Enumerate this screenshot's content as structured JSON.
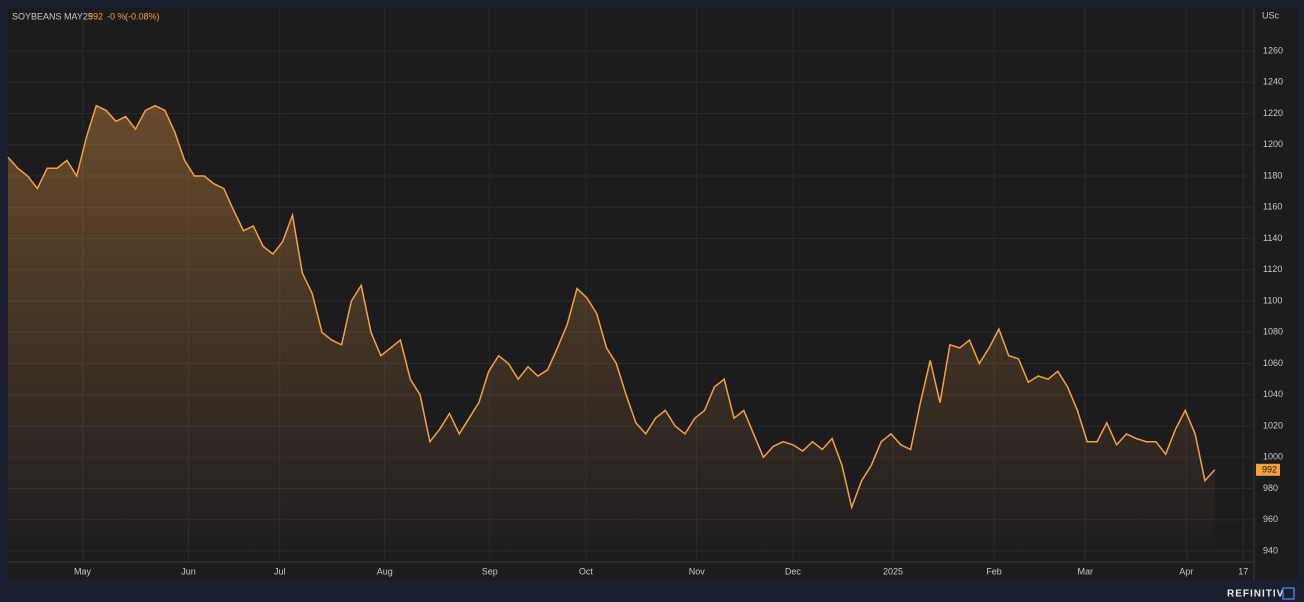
{
  "header": {
    "title": "SOYBEANS MAY25",
    "change": "-0 %",
    "change_pct": "(-0.08%)"
  },
  "chart_data": {
    "type": "area",
    "y_unit": "USc",
    "color": "#f5a142",
    "grid": true,
    "values": [
      1192,
      1185,
      1180,
      1172,
      1185,
      1185,
      1190,
      1180,
      1205,
      1225,
      1222,
      1215,
      1218,
      1210,
      1222,
      1225,
      1222,
      1208,
      1190,
      1180,
      1180,
      1175,
      1172,
      1158,
      1145,
      1148,
      1135,
      1130,
      1138,
      1155,
      1118,
      1105,
      1080,
      1075,
      1072,
      1100,
      1110,
      1080,
      1065,
      1070,
      1075,
      1050,
      1040,
      1010,
      1018,
      1028,
      1015,
      1025,
      1035,
      1055,
      1065,
      1060,
      1050,
      1058,
      1052,
      1056,
      1070,
      1085,
      1108,
      1102,
      1092,
      1070,
      1060,
      1040,
      1022,
      1015,
      1025,
      1030,
      1020,
      1015,
      1025,
      1030,
      1045,
      1050,
      1025,
      1030,
      1015,
      1000,
      1007,
      1010,
      1008,
      1004,
      1010,
      1005,
      1012,
      995,
      968,
      985,
      995,
      1010,
      1015,
      1008,
      1005,
      1035,
      1062,
      1035,
      1072,
      1070,
      1075,
      1060,
      1070,
      1082,
      1065,
      1063,
      1048,
      1052,
      1050,
      1055,
      1045,
      1030,
      1010,
      1010,
      1022,
      1008,
      1015,
      1012,
      1010,
      1010,
      1002,
      1018,
      1030,
      1015,
      985,
      992
    ],
    "xlim": [
      0,
      127
    ],
    "xticks": [
      {
        "value": 7.6,
        "label": "May"
      },
      {
        "value": 18.4,
        "label": "Jun"
      },
      {
        "value": 27.7,
        "label": "Jul"
      },
      {
        "value": 38.4,
        "label": "Aug"
      },
      {
        "value": 49.1,
        "label": "Sep"
      },
      {
        "value": 58.9,
        "label": "Oct"
      },
      {
        "value": 70.2,
        "label": "Nov"
      },
      {
        "value": 80.0,
        "label": "Dec"
      },
      {
        "value": 90.2,
        "label": "2025"
      },
      {
        "value": 100.5,
        "label": "Feb"
      },
      {
        "value": 109.8,
        "label": "Mar"
      },
      {
        "value": 120.1,
        "label": "Apr"
      },
      {
        "value": 125.9,
        "label": "17"
      }
    ],
    "ylim": [
      933,
      1287.5
    ],
    "yticks": [
      940,
      960,
      980,
      1000,
      1020,
      1040,
      1060,
      1080,
      1100,
      1120,
      1140,
      1160,
      1180,
      1200,
      1220,
      1240,
      1260
    ]
  },
  "footer": {
    "brand": "REFINITIV"
  }
}
